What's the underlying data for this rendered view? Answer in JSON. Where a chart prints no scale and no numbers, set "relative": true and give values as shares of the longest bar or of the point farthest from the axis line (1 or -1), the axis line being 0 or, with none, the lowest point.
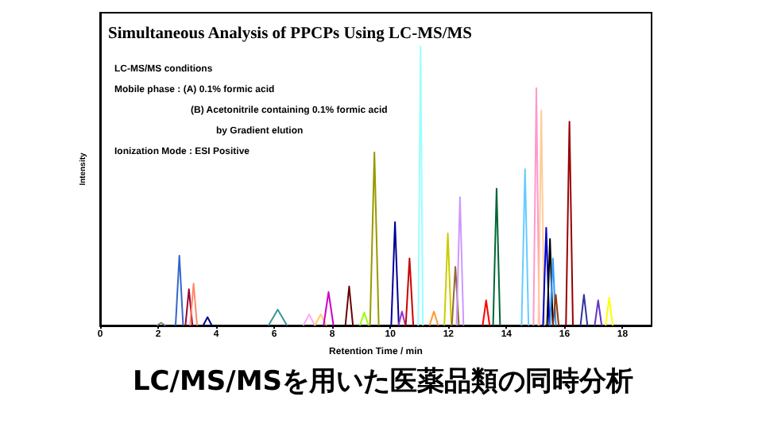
{
  "chart_data": {
    "type": "line",
    "relative": true,
    "title": "Simultaneous Analysis of PPCPs Using LC-MS/MS",
    "subtitle": "LC/MS/MSを用いた医薬品類の同時分析",
    "xlabel": "Retention Time / min",
    "ylabel": "Intensity",
    "annotations": [
      "LC-MS/MS conditions",
      "Mobile phase : (A) 0.1% formic acid",
      "(B) Acetonitrile containing 0.1% formic acid",
      "by Gradient elution",
      "Ionization Mode : ESI Positive"
    ],
    "xlim": [
      0,
      19
    ],
    "xticks": [
      0,
      2,
      4,
      6,
      8,
      10,
      12,
      14,
      16,
      18
    ],
    "tick_labels": "x",
    "grid": false,
    "marker": "none",
    "line_style": "solid",
    "series": [
      {
        "color": "#808080",
        "x": [
          1.95,
          2.1,
          2.25
        ],
        "values": [
          0,
          0.01,
          0
        ]
      },
      {
        "color": "#3366cc",
        "x": [
          2.6,
          2.73,
          2.86
        ],
        "values": [
          0,
          0.25,
          0
        ]
      },
      {
        "color": "#990033",
        "x": [
          2.94,
          3.06,
          3.18
        ],
        "values": [
          0,
          0.13,
          0
        ]
      },
      {
        "color": "#ff8866",
        "x": [
          3.1,
          3.22,
          3.34
        ],
        "values": [
          0,
          0.15,
          0
        ]
      },
      {
        "color": "#000099",
        "x": [
          3.55,
          3.7,
          3.85
        ],
        "values": [
          0,
          0.03,
          0
        ]
      },
      {
        "color": "#339999",
        "x": [
          5.8,
          6.12,
          6.44
        ],
        "values": [
          0,
          0.057,
          0
        ]
      },
      {
        "color": "#ffaaff",
        "x": [
          7.0,
          7.2,
          7.4
        ],
        "values": [
          0,
          0.04,
          0
        ]
      },
      {
        "color": "#ffcc66",
        "x": [
          7.4,
          7.6,
          7.8
        ],
        "values": [
          0,
          0.04,
          0
        ]
      },
      {
        "color": "#cc00cc",
        "x": [
          7.7,
          7.87,
          8.04
        ],
        "values": [
          0,
          0.12,
          0
        ]
      },
      {
        "color": "#660000",
        "x": [
          8.45,
          8.58,
          8.71
        ],
        "values": [
          0,
          0.14,
          0
        ]
      },
      {
        "color": "#99ff00",
        "x": [
          8.95,
          9.1,
          9.25
        ],
        "values": [
          0,
          0.046,
          0
        ]
      },
      {
        "color": "#999900",
        "x": [
          9.3,
          9.45,
          9.6
        ],
        "values": [
          0,
          0.62,
          0
        ]
      },
      {
        "color": "#000099",
        "x": [
          10.03,
          10.16,
          10.29
        ],
        "values": [
          0,
          0.37,
          0
        ]
      },
      {
        "color": "#9933cc",
        "x": [
          10.28,
          10.4,
          10.52
        ],
        "values": [
          0,
          0.05,
          0
        ]
      },
      {
        "color": "#cc0000",
        "x": [
          10.53,
          10.66,
          10.79
        ],
        "values": [
          0,
          0.24,
          0
        ]
      },
      {
        "color": "#99ffff",
        "x": [
          10.96,
          11.04,
          11.12
        ],
        "values": [
          0,
          1,
          0
        ]
      },
      {
        "color": "#ff9933",
        "x": [
          11.35,
          11.5,
          11.65
        ],
        "values": [
          0,
          0.05,
          0
        ]
      },
      {
        "color": "#cccc00",
        "x": [
          11.86,
          11.98,
          12.1
        ],
        "values": [
          0,
          0.33,
          0
        ]
      },
      {
        "color": "#996633",
        "x": [
          12.12,
          12.24,
          12.36
        ],
        "values": [
          0,
          0.21,
          0
        ]
      },
      {
        "color": "#cc99ff",
        "x": [
          12.28,
          12.4,
          12.52
        ],
        "values": [
          0,
          0.46,
          0
        ]
      },
      {
        "color": "#ff0000",
        "x": [
          13.18,
          13.3,
          13.42
        ],
        "values": [
          0,
          0.09,
          0
        ]
      },
      {
        "color": "#006633",
        "x": [
          13.54,
          13.66,
          13.78
        ],
        "values": [
          0,
          0.49,
          0
        ]
      },
      {
        "color": "#66ccff",
        "x": [
          14.52,
          14.64,
          14.76
        ],
        "values": [
          0,
          0.56,
          0
        ]
      },
      {
        "color": "#ff99cc",
        "x": [
          14.93,
          15.03,
          15.13
        ],
        "values": [
          0,
          0.85,
          0
        ]
      },
      {
        "color": "#ffcc99",
        "x": [
          15.1,
          15.2,
          15.3
        ],
        "values": [
          0,
          0.77,
          0
        ]
      },
      {
        "color": "#0000cc",
        "x": [
          15.26,
          15.37,
          15.48
        ],
        "values": [
          0,
          0.35,
          0
        ]
      },
      {
        "color": "#000000",
        "x": [
          15.4,
          15.5,
          15.6
        ],
        "values": [
          0,
          0.31,
          0
        ]
      },
      {
        "color": "#3399ff",
        "x": [
          15.5,
          15.6,
          15.7
        ],
        "values": [
          0,
          0.24,
          0
        ]
      },
      {
        "color": "#993300",
        "x": [
          15.6,
          15.7,
          15.8
        ],
        "values": [
          0,
          0.11,
          0
        ]
      },
      {
        "color": "#990000",
        "x": [
          16.05,
          16.17,
          16.29
        ],
        "values": [
          0,
          0.73,
          0
        ]
      },
      {
        "color": "#333399",
        "x": [
          16.55,
          16.67,
          16.79
        ],
        "values": [
          0,
          0.11,
          0
        ]
      },
      {
        "color": "#6633cc",
        "x": [
          17.04,
          17.16,
          17.28
        ],
        "values": [
          0,
          0.09,
          0
        ]
      },
      {
        "color": "#ffff00",
        "x": [
          17.42,
          17.54,
          17.66
        ],
        "values": [
          0,
          0.1,
          0
        ]
      }
    ]
  }
}
